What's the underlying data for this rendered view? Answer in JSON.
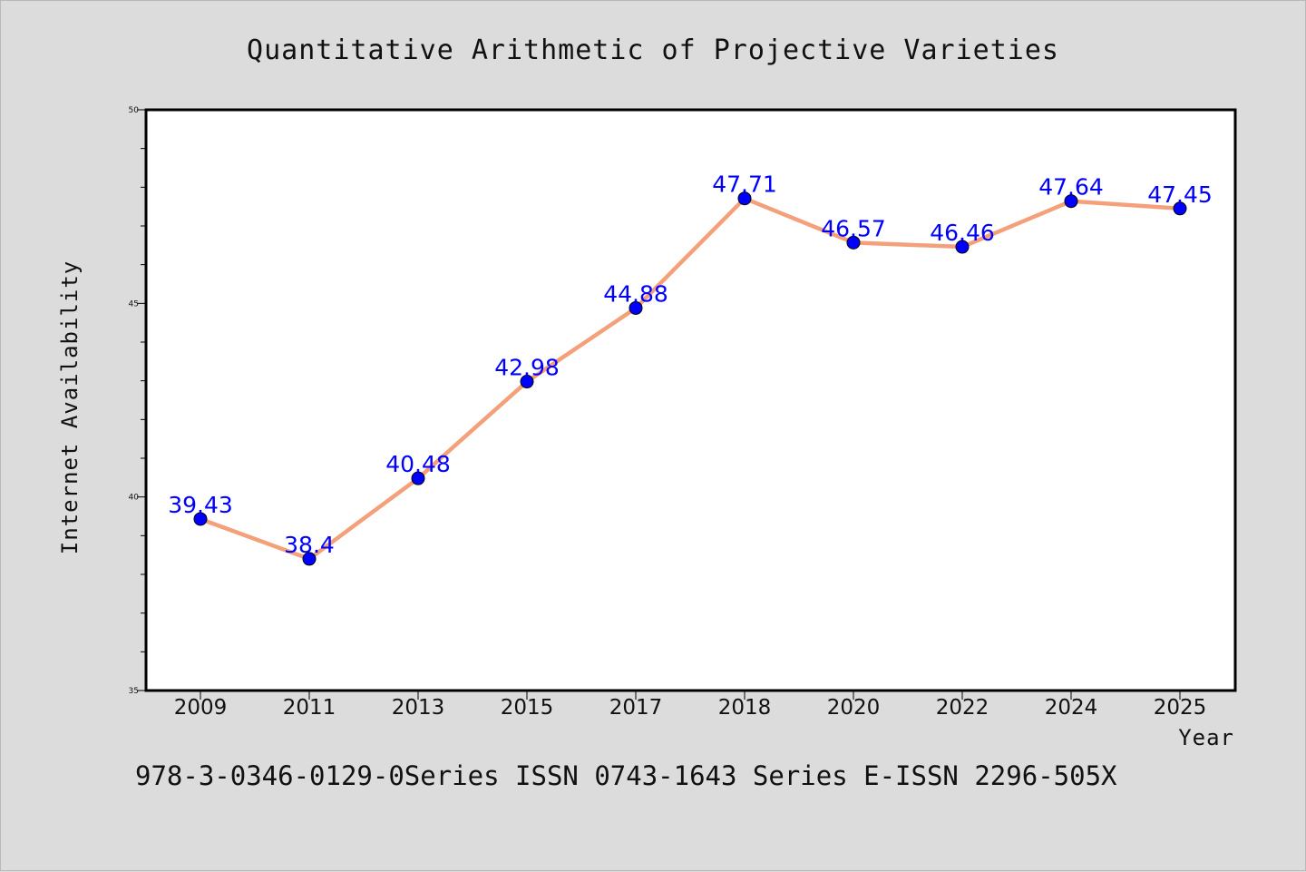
{
  "chart_data": {
    "type": "line",
    "title": "Quantitative Arithmetic of Projective Varieties",
    "xlabel": "Year",
    "ylabel": "Internet Availability",
    "categories": [
      "2009",
      "2011",
      "2013",
      "2015",
      "2017",
      "2018",
      "2020",
      "2022",
      "2024",
      "2025"
    ],
    "series": [
      {
        "values": [
          39.43,
          38.4,
          40.48,
          42.98,
          44.88,
          47.71,
          46.57,
          46.46,
          47.64,
          47.45
        ],
        "data_labels": [
          "39.43",
          "38.4",
          "40.48",
          "42.98",
          "44.88",
          "47.71",
          "46.57",
          "46.46",
          "47.64",
          "47.45"
        ],
        "line_color": "#f4a07a",
        "marker_color": "#0000ff"
      }
    ],
    "ylim": [
      35,
      50
    ],
    "yticks": [
      "35",
      "40",
      "45",
      "50"
    ],
    "grid": false,
    "legend": "none",
    "background_color": "#dcdcdc",
    "plot_background_color": "#ffffff"
  },
  "footer": {
    "text": "978-3-0346-0129-0Series ISSN 0743-1643 Series E-ISSN 2296-505X"
  }
}
